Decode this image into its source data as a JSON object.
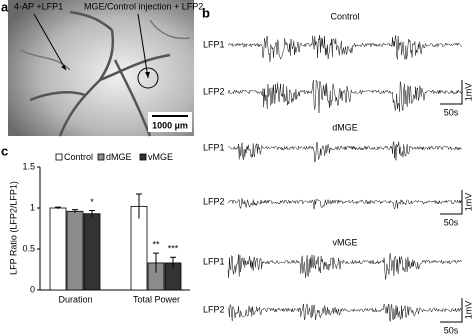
{
  "panel_labels": [
    "a",
    "b",
    "c"
  ],
  "image_panel": {
    "labels": [
      "4-AP +LFP1",
      "MGE/Control injection + LFP2"
    ],
    "scale_bar": "1000 µm"
  },
  "trace_panel": {
    "groups": [
      {
        "title": "Control",
        "channels": [
          "LFP1",
          "LFP2"
        ],
        "scale": [
          "1mV",
          "50s"
        ]
      },
      {
        "title": "dMGE",
        "channels": [
          "LFP1",
          "LFP2"
        ],
        "scale": [
          "1mV",
          "50s"
        ]
      },
      {
        "title": "vMGE",
        "channels": [
          "LFP1",
          "LFP2"
        ],
        "scale": [
          "1mV",
          "50s"
        ]
      }
    ]
  },
  "chart_data": {
    "type": "bar",
    "y_label": "LFP Ratio (LFP2/LFP1)",
    "categories": [
      "Duration",
      "Total Power"
    ],
    "series": [
      {
        "name": "Control",
        "color": "#ffffff",
        "values": [
          1.0,
          1.02
        ],
        "errors": [
          0.01,
          0.15
        ]
      },
      {
        "name": "dMGE",
        "color": "#8c8c8c",
        "values": [
          0.96,
          0.33
        ],
        "errors": [
          0.02,
          0.12
        ]
      },
      {
        "name": "vMGE",
        "color": "#333333",
        "values": [
          0.93,
          0.33
        ],
        "errors": [
          0.04,
          0.07
        ]
      }
    ],
    "annotations": [
      "*",
      "**",
      "***"
    ],
    "ylim": [
      0,
      1.5
    ],
    "yticks": [
      0,
      0.5,
      1,
      1.5
    ]
  }
}
